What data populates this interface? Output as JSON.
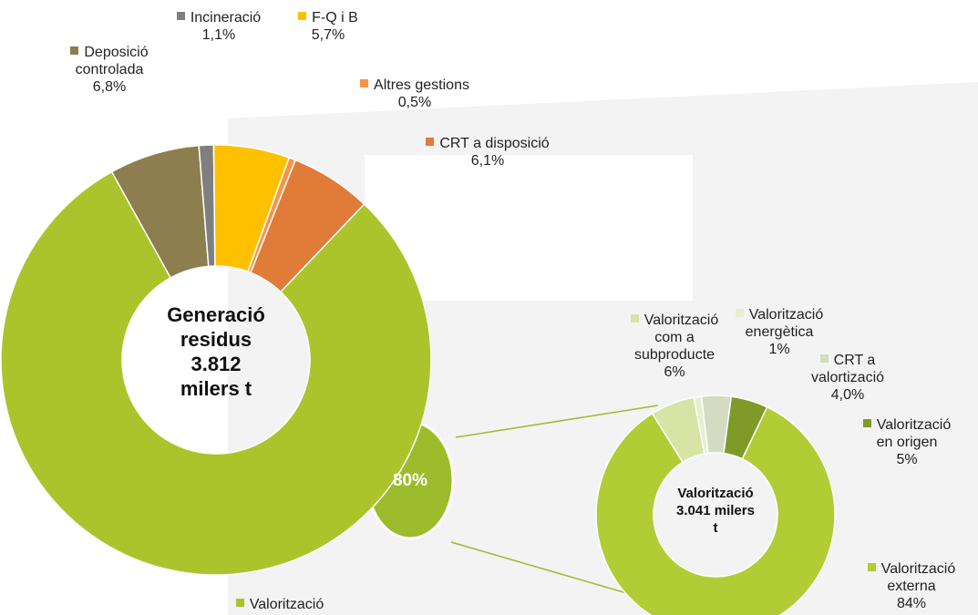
{
  "chart_data": [
    {
      "type": "donut",
      "center_label": [
        "Generació",
        "residus",
        "3.812",
        "milers t"
      ],
      "categories": [
        "Deposició controlada",
        "Incineració",
        "F-Q i B",
        "Altres gestions",
        "CRT a disposició",
        "Valorització"
      ],
      "values": [
        6.8,
        1.1,
        5.7,
        0.5,
        6.1,
        80
      ],
      "value_labels": [
        "6,8%",
        "1,1%",
        "5,7%",
        "0,5%",
        "6,1%",
        "80%"
      ],
      "colors": [
        "#8c7e4e",
        "#7f7f7f",
        "#ffc000",
        "#f79646",
        "#e07b39",
        "#acc42c"
      ]
    },
    {
      "type": "donut",
      "center_label": [
        "Valorització",
        "3.041 milers",
        "t"
      ],
      "categories": [
        "Valorització com a subproducte",
        "Valorització energètica",
        "CRT a valortizació",
        "Valorització en origen",
        "Valorització externa"
      ],
      "values": [
        6,
        1,
        4.0,
        5,
        84
      ],
      "value_labels": [
        "6%",
        "1%",
        "4,0%",
        "5%",
        "84%"
      ],
      "colors": [
        "#d7e4a5",
        "#e8efcc",
        "#d3dcc2",
        "#7f9a27",
        "#b2cc36"
      ]
    }
  ]
}
